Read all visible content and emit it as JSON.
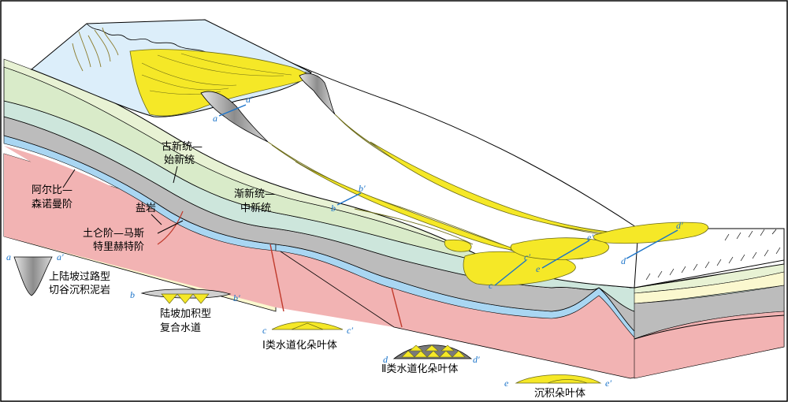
{
  "units": [
    {
      "id": "paleocene_eocene",
      "lines": [
        "古新统—",
        "始新统"
      ]
    },
    {
      "id": "oligocene_miocene",
      "lines": [
        "渐新统—",
        "中新统"
      ]
    },
    {
      "id": "albian_cenomanian",
      "lines": [
        "阿尔比—",
        "森诺曼阶"
      ]
    },
    {
      "id": "salt",
      "lines": [
        "盐岩"
      ]
    },
    {
      "id": "turonian_maastrichtian",
      "lines": [
        "土仑阶—马斯",
        "特里赫特阶"
      ]
    }
  ],
  "legend": [
    {
      "key": "a",
      "key2": "a′",
      "lines": [
        "上陆坡过路型",
        "切谷沉积泥岩"
      ]
    },
    {
      "key": "b",
      "key2": "b′",
      "lines": [
        "陆坡加积型",
        "复合水道"
      ]
    },
    {
      "key": "c",
      "key2": "c′",
      "lines": [
        "Ⅰ类水道化朵叶体"
      ]
    },
    {
      "key": "d",
      "key2": "d′",
      "lines": [
        "Ⅱ类水道化朵叶体"
      ]
    },
    {
      "key": "e",
      "key2": "e′",
      "lines": [
        "沉积朵叶体"
      ]
    }
  ],
  "section_markers": {
    "a": "a",
    "a2": "a′",
    "b": "b",
    "b2": "b′",
    "c": "c",
    "c2": "c′",
    "d": "d",
    "d2": "d′",
    "e": "e",
    "e2": "e′"
  },
  "colors": {
    "shelf_water": "#dceefa",
    "yellow_sand": "#f5e827",
    "mudstone": "#b3b3b3",
    "layer_green_light": "#e8f2d4",
    "layer_green": "#d9ebc9",
    "layer_teal": "#cde6dc",
    "layer_gray": "#bcbcbc",
    "layer_blue": "#a9d6f2",
    "layer_pink": "#f2b3b3",
    "layer_cream": "#fbf8cf",
    "marker_blue": "#1a73c9"
  }
}
